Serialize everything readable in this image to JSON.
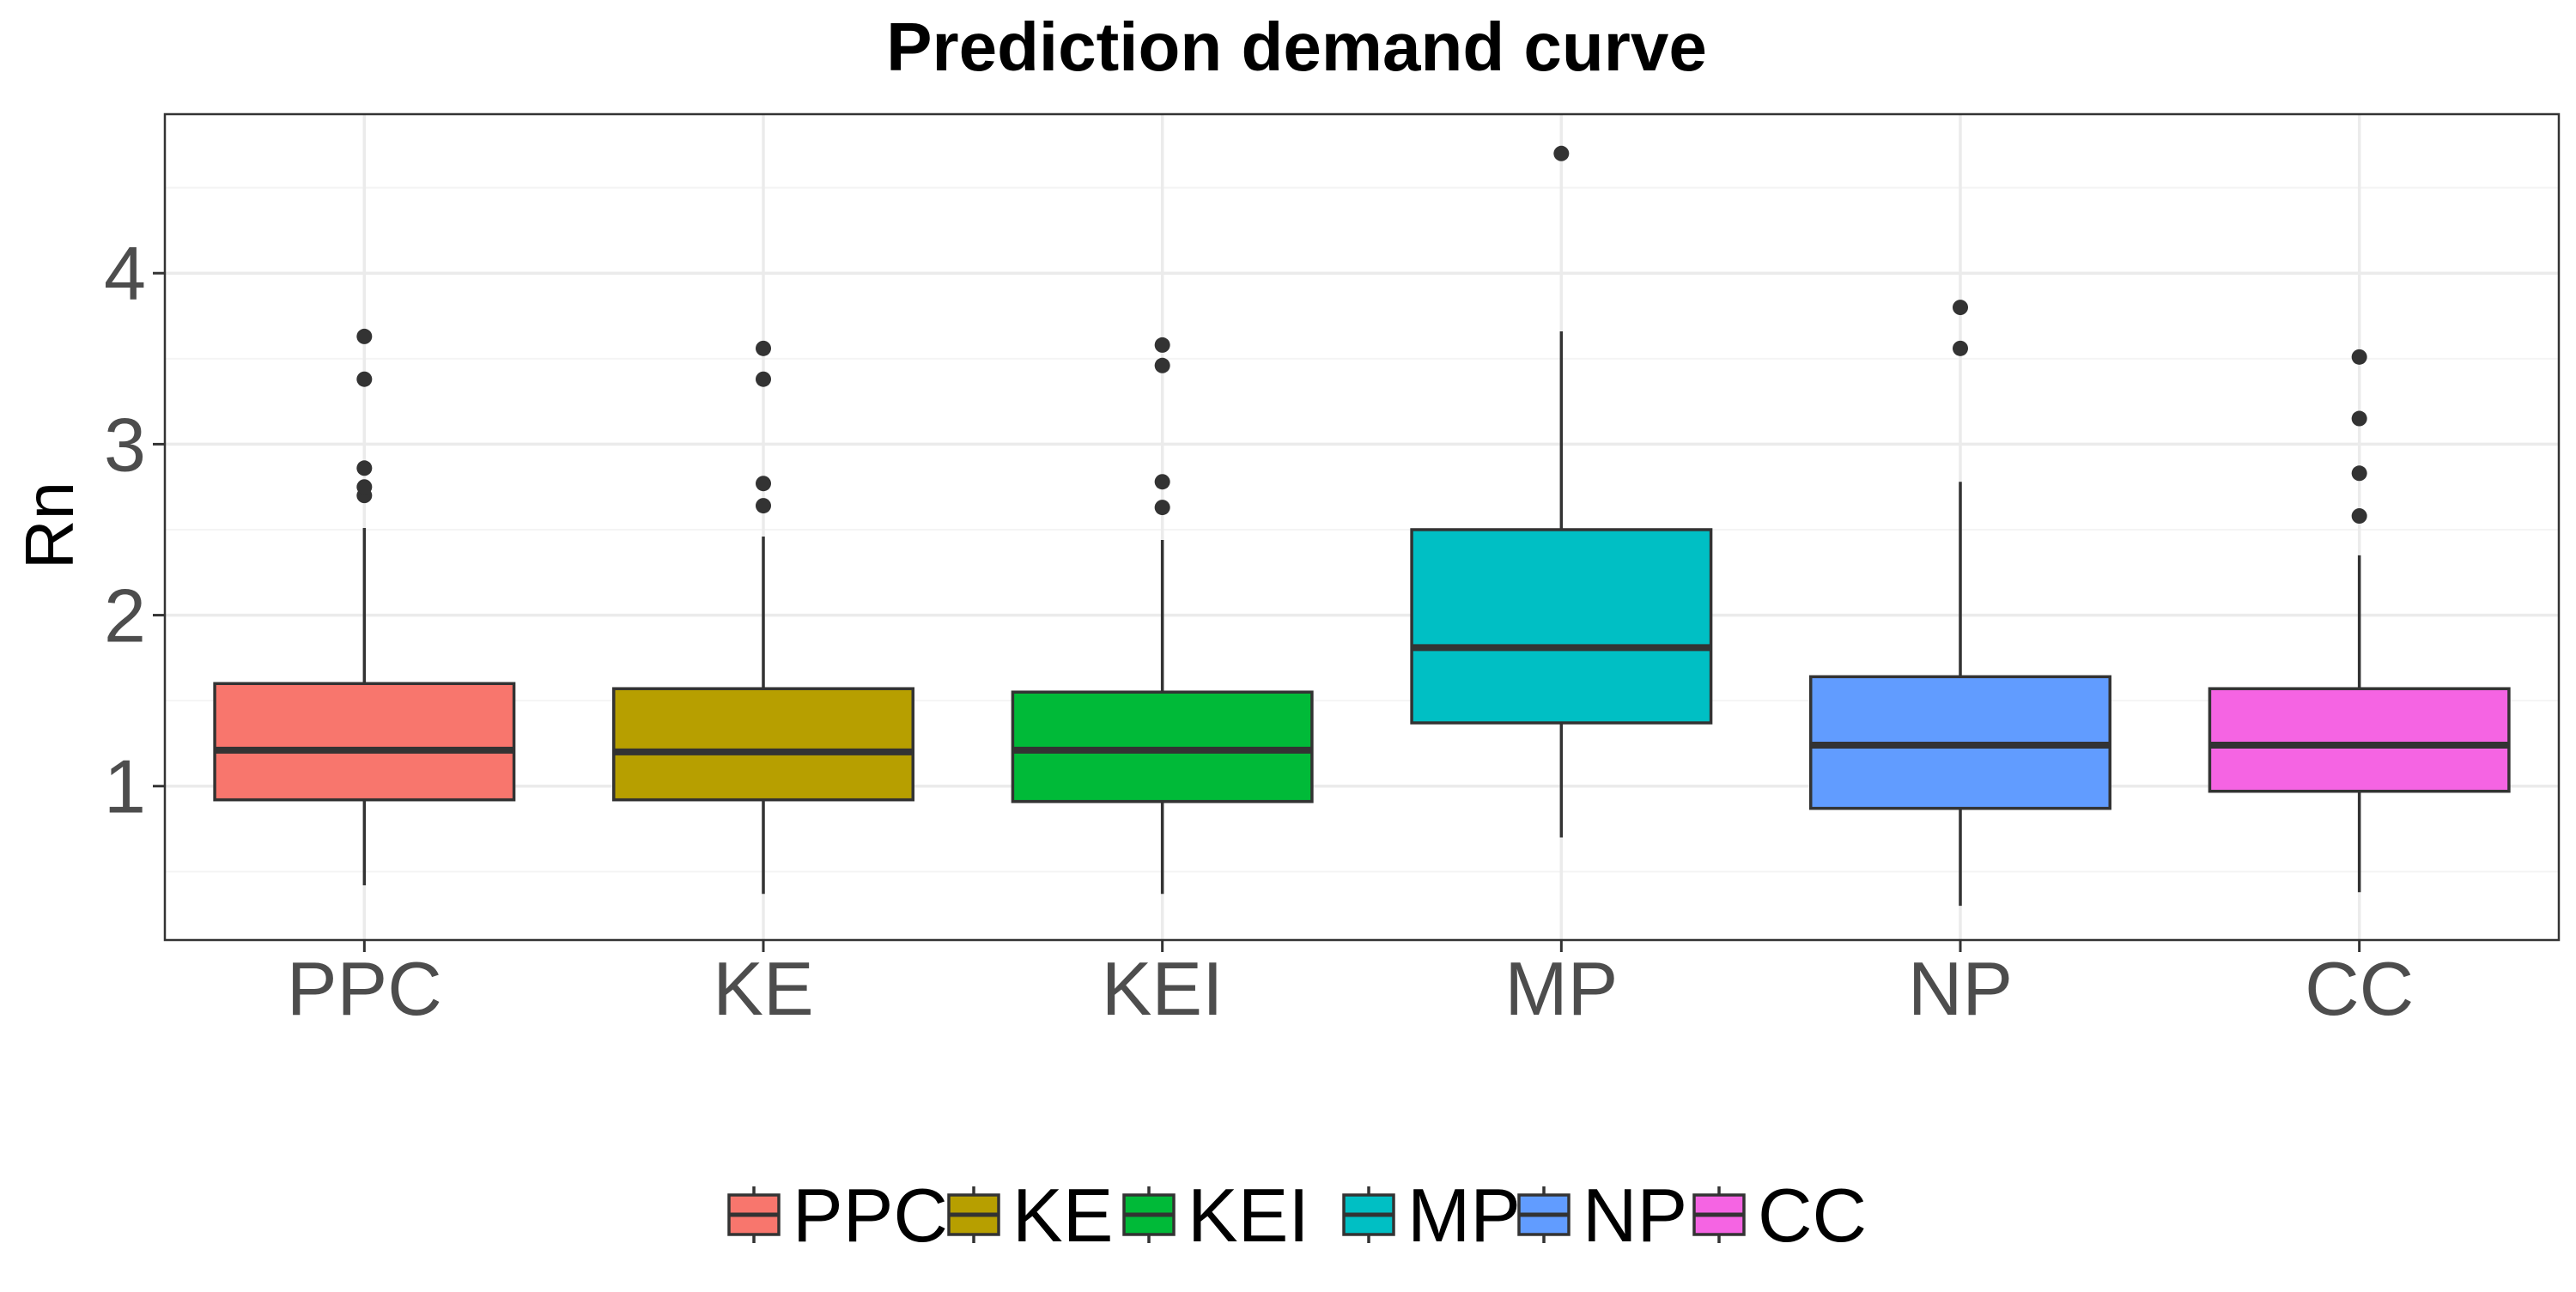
{
  "chart_data": {
    "type": "boxplot",
    "title": "Prediction demand curve",
    "xlabel": "",
    "ylabel": "Rn",
    "ylim": [
      0.1,
      4.93
    ],
    "y_ticks": [
      1,
      2,
      3,
      4
    ],
    "y_tick_labels": [
      "1",
      "2",
      "3",
      "4"
    ],
    "grid": true,
    "legend_position": "bottom",
    "categories": [
      "PPC",
      "KE",
      "KEI",
      "MP",
      "NP",
      "CC"
    ],
    "series": [
      {
        "name": "PPC",
        "color": "#F8766D",
        "whisker_low": 0.42,
        "q1": 0.92,
        "median": 1.21,
        "q3": 1.6,
        "whisker_high": 2.51,
        "outliers": [
          2.7,
          2.75,
          2.86,
          3.38,
          3.63
        ]
      },
      {
        "name": "KE",
        "color": "#B79F00",
        "whisker_low": 0.37,
        "q1": 0.92,
        "median": 1.2,
        "q3": 1.57,
        "whisker_high": 2.46,
        "outliers": [
          2.64,
          2.77,
          3.38,
          3.56
        ]
      },
      {
        "name": "KEI",
        "color": "#00BA38",
        "whisker_low": 0.37,
        "q1": 0.91,
        "median": 1.21,
        "q3": 1.55,
        "whisker_high": 2.44,
        "outliers": [
          2.63,
          2.78,
          3.46,
          3.58
        ]
      },
      {
        "name": "MP",
        "color": "#00BFC4",
        "whisker_low": 0.7,
        "q1": 1.37,
        "median": 1.81,
        "q3": 2.5,
        "whisker_high": 3.66,
        "outliers": [
          4.7
        ]
      },
      {
        "name": "NP",
        "color": "#619CFF",
        "whisker_low": 0.3,
        "q1": 0.87,
        "median": 1.24,
        "q3": 1.64,
        "whisker_high": 2.78,
        "outliers": [
          3.56,
          3.8
        ]
      },
      {
        "name": "CC",
        "color": "#F564E3",
        "whisker_low": 0.38,
        "q1": 0.97,
        "median": 1.24,
        "q3": 1.57,
        "whisker_high": 2.35,
        "outliers": [
          2.58,
          2.83,
          3.15,
          3.51
        ]
      }
    ],
    "style": {
      "box_outline": "#333333",
      "outlier_color": "#333333",
      "panel_border": "#333333",
      "grid_major": "#ebebeb",
      "grid_minor": "#f4f4f4",
      "tick_label_color": "#4d4d4d"
    }
  }
}
